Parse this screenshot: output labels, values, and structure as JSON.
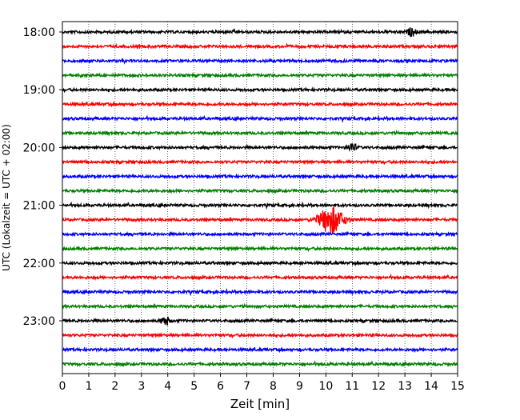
{
  "chart_data": {
    "type": "line",
    "title": "",
    "xlabel": "Zeit  [min]",
    "ylabel": "UTC (Lokalzeit = UTC + 02:00)",
    "xlim": [
      0,
      15
    ],
    "x_ticks": [
      "0",
      "1",
      "2",
      "3",
      "4",
      "5",
      "6",
      "7",
      "8",
      "9",
      "10",
      "11",
      "12",
      "13",
      "14",
      "15"
    ],
    "y_tick_labels": [
      "18:00",
      "19:00",
      "20:00",
      "21:00",
      "22:00",
      "23:00"
    ],
    "grid": "vertical dotted at each minute",
    "trace_interval_minutes": 15,
    "trace_start": "18:00",
    "trace_count": 24,
    "colors": [
      "#000000",
      "#ff0000",
      "#0000ff",
      "#008000"
    ],
    "events": [
      {
        "trace": "18:00",
        "minute": 13.25,
        "amplitude": "small spike"
      },
      {
        "trace": "20:00",
        "minute": 11.0,
        "amplitude": "small burst"
      },
      {
        "trace": "21:15",
        "minute": 10.2,
        "amplitude": "large burst"
      },
      {
        "trace": "23:00",
        "minute": 3.9,
        "amplitude": "small burst"
      }
    ]
  }
}
